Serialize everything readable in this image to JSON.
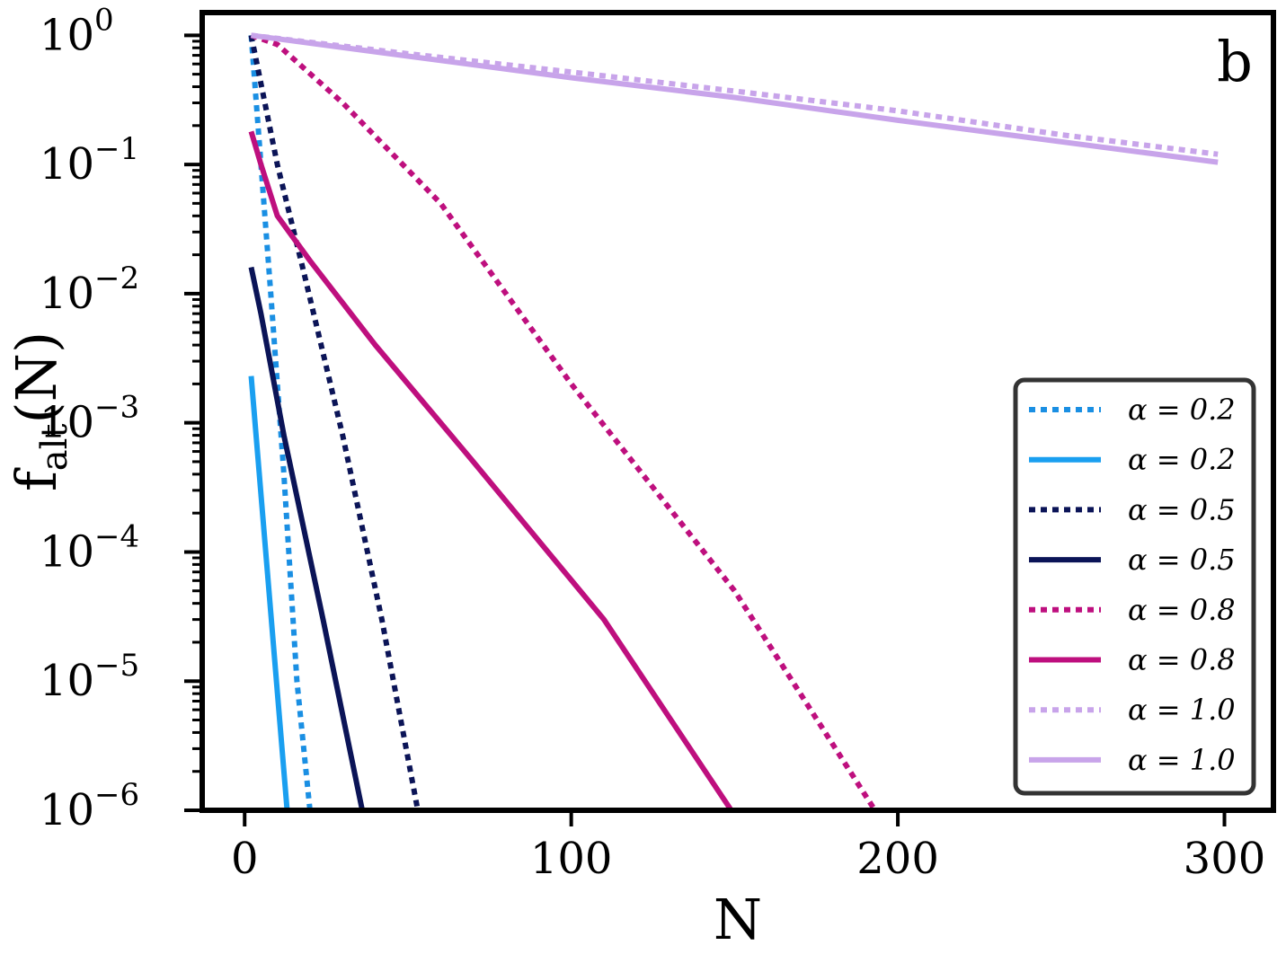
{
  "chart_data": {
    "type": "line",
    "panel_label": "b",
    "xlabel": "N",
    "ylabel": "f_alt(N)",
    "ylabel_main": "f",
    "ylabel_sub": "alt",
    "ylabel_tail": "(N)",
    "xscale": "linear",
    "yscale": "log",
    "xlim": [
      -13,
      315
    ],
    "ylim": [
      1e-06,
      1.5
    ],
    "xticks": [
      0,
      100,
      200,
      300
    ],
    "xtick_labels": [
      "0",
      "100",
      "200",
      "300"
    ],
    "yticks": [
      1,
      0.1,
      0.01,
      0.001,
      0.0001,
      1e-05,
      1e-06
    ],
    "ytick_base": "10",
    "ytick_exponents": [
      "0",
      "−1",
      "−2",
      "−3",
      "−4",
      "−5",
      "−6"
    ],
    "grid": false,
    "legend_position": "lower-right",
    "series": [
      {
        "name": "α = 0.2",
        "style": "dotted",
        "color": "#1a8fe3",
        "x": [
          2,
          5,
          8,
          12,
          16,
          20
        ],
        "y": [
          1,
          0.1,
          0.01,
          0.0004,
          1e-05,
          1e-06
        ]
      },
      {
        "name": "α = 0.2",
        "style": "solid",
        "color": "#1a9ff0",
        "x": [
          2,
          13
        ],
        "y": [
          0.0023,
          1e-06
        ]
      },
      {
        "name": "α = 0.5",
        "style": "dotted",
        "color": "#0b1457",
        "x": [
          2,
          10,
          18,
          30,
          42,
          53
        ],
        "y": [
          1,
          0.1,
          0.015,
          0.0008,
          3e-05,
          1e-06
        ]
      },
      {
        "name": "α = 0.5",
        "style": "solid",
        "color": "#0b1457",
        "x": [
          2,
          5,
          12,
          24,
          36
        ],
        "y": [
          0.016,
          0.007,
          0.0008,
          3e-05,
          1e-06
        ]
      },
      {
        "name": "α = 0.8",
        "style": "dotted",
        "color": "#be0f7e",
        "x": [
          2,
          10,
          30,
          60,
          100,
          150,
          193
        ],
        "y": [
          1,
          0.85,
          0.3,
          0.05,
          0.002,
          5e-05,
          1e-06
        ]
      },
      {
        "name": "α = 0.8",
        "style": "solid",
        "color": "#be0f7e",
        "x": [
          2,
          5,
          10,
          20,
          40,
          70,
          110,
          149
        ],
        "y": [
          0.18,
          0.1,
          0.04,
          0.018,
          0.004,
          0.0005,
          3e-05,
          1e-06
        ]
      },
      {
        "name": "α = 1.0",
        "style": "dotted",
        "color": "#c8a4ea",
        "x": [
          2,
          50,
          100,
          150,
          200,
          250,
          298
        ],
        "y": [
          1,
          0.72,
          0.52,
          0.37,
          0.26,
          0.17,
          0.12
        ]
      },
      {
        "name": "α = 1.0",
        "style": "solid",
        "color": "#c8a4ea",
        "x": [
          2,
          50,
          100,
          150,
          200,
          250,
          298
        ],
        "y": [
          1,
          0.69,
          0.47,
          0.33,
          0.22,
          0.15,
          0.104
        ]
      }
    ]
  }
}
